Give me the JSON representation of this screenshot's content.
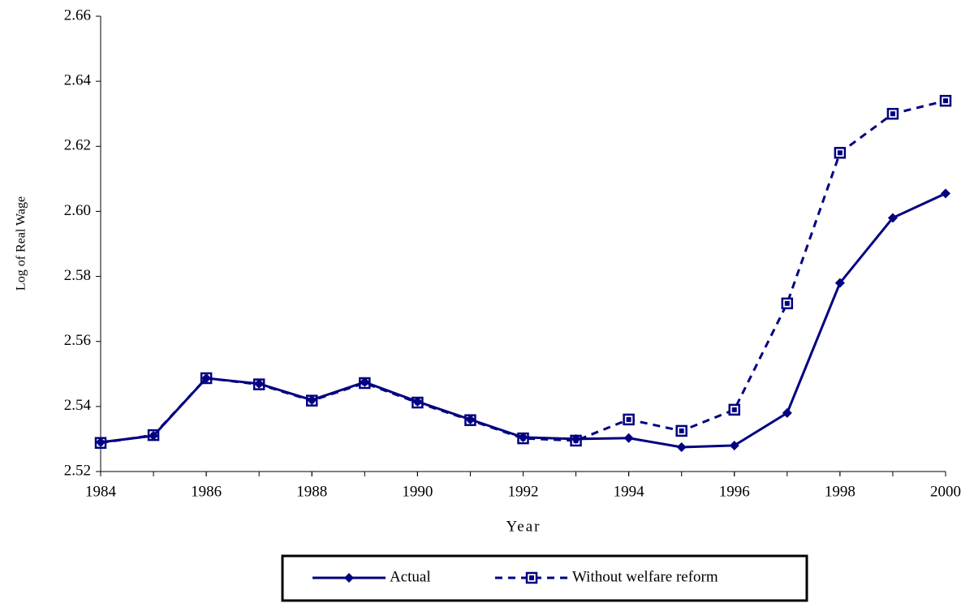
{
  "chart_data": {
    "type": "line",
    "x_label": "Year",
    "y_label": "Log of Real Wage",
    "x": [
      1984,
      1985,
      1986,
      1987,
      1988,
      1989,
      1990,
      1991,
      1992,
      1993,
      1994,
      1995,
      1996,
      1997,
      1998,
      1999,
      2000
    ],
    "series": [
      {
        "name": "Actual",
        "color": "#000080",
        "dash": false,
        "marker": "diamond",
        "values": [
          2.529,
          2.531,
          2.5487,
          2.547,
          2.542,
          2.5475,
          2.5415,
          2.536,
          2.5305,
          2.53,
          2.5303,
          2.5275,
          2.528,
          2.538,
          2.578,
          2.598,
          2.6055
        ]
      },
      {
        "name": "Without welfare reform",
        "color": "#000080",
        "dash": true,
        "marker": "square",
        "values": [
          2.5288,
          2.5312,
          2.5487,
          2.5468,
          2.5418,
          2.5472,
          2.5412,
          2.5358,
          2.5302,
          2.5295,
          2.536,
          2.5325,
          2.539,
          2.5717,
          2.618,
          2.63,
          2.634
        ]
      }
    ],
    "xlim": [
      1984,
      2000
    ],
    "xticks": [
      1984,
      1986,
      1988,
      1990,
      1992,
      1994,
      1996,
      1998,
      2000
    ],
    "ylim": [
      2.52,
      2.66
    ],
    "yticks": [
      2.52,
      2.54,
      2.56,
      2.58,
      {
        "value": 2.6,
        "label": "2.60"
      },
      2.62,
      2.64,
      2.66
    ],
    "grid": false,
    "legend": "bottom"
  }
}
